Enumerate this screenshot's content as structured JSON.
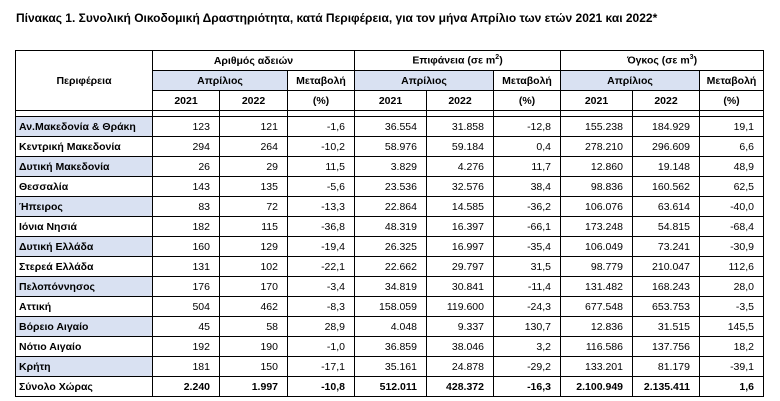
{
  "title": "Πίνακας 1. Συνολική Οικοδομική Δραστηριότητα, κατά  Περιφέρεια, για τον μήνα Απρίλιο των ετών 2021 και 2022*",
  "headers": {
    "region": "Περιφέρεια",
    "permits": "Αριθμός αδειών",
    "area": "Επιφάνεια (σε m",
    "area_sup": "2",
    "volume": "Όγκος (σε m",
    "volume_sup": "3",
    "close_paren": ")",
    "month": "Απρίλιος",
    "change": "Μεταβολή",
    "pct": "(%)",
    "year1": "2021",
    "year2": "2022"
  },
  "rows": [
    {
      "region": "Αν.Μακεδονία & Θράκη",
      "p21": "123",
      "p22": "121",
      "pc": "-1,6",
      "a21": "36.554",
      "a22": "31.858",
      "ac": "-12,8",
      "v21": "155.238",
      "v22": "184.929",
      "vc": "19,1"
    },
    {
      "region": "Κεντρική Μακεδονία",
      "p21": "294",
      "p22": "264",
      "pc": "-10,2",
      "a21": "58.976",
      "a22": "59.184",
      "ac": "0,4",
      "v21": "278.210",
      "v22": "296.609",
      "vc": "6,6"
    },
    {
      "region": "Δυτική Μακεδονία",
      "p21": "26",
      "p22": "29",
      "pc": "11,5",
      "a21": "3.829",
      "a22": "4.276",
      "ac": "11,7",
      "v21": "12.860",
      "v22": "19.148",
      "vc": "48,9"
    },
    {
      "region": "Θεσσαλία",
      "p21": "143",
      "p22": "135",
      "pc": "-5,6",
      "a21": "23.536",
      "a22": "32.576",
      "ac": "38,4",
      "v21": "98.836",
      "v22": "160.562",
      "vc": "62,5"
    },
    {
      "region": "Ήπειρος",
      "p21": "83",
      "p22": "72",
      "pc": "-13,3",
      "a21": "22.864",
      "a22": "14.585",
      "ac": "-36,2",
      "v21": "106.076",
      "v22": "63.614",
      "vc": "-40,0"
    },
    {
      "region": "Ιόνια Νησιά",
      "p21": "182",
      "p22": "115",
      "pc": "-36,8",
      "a21": "48.319",
      "a22": "16.397",
      "ac": "-66,1",
      "v21": "173.248",
      "v22": "54.815",
      "vc": "-68,4"
    },
    {
      "region": "Δυτική Ελλάδα",
      "p21": "160",
      "p22": "129",
      "pc": "-19,4",
      "a21": "26.325",
      "a22": "16.997",
      "ac": "-35,4",
      "v21": "106.049",
      "v22": "73.241",
      "vc": "-30,9"
    },
    {
      "region": "Στερεά Ελλάδα",
      "p21": "131",
      "p22": "102",
      "pc": "-22,1",
      "a21": "22.662",
      "a22": "29.797",
      "ac": "31,5",
      "v21": "98.779",
      "v22": "210.047",
      "vc": "112,6"
    },
    {
      "region": "Πελοπόννησος",
      "p21": "176",
      "p22": "170",
      "pc": "-3,4",
      "a21": "34.819",
      "a22": "30.841",
      "ac": "-11,4",
      "v21": "131.482",
      "v22": "168.243",
      "vc": "28,0"
    },
    {
      "region": "Αττική",
      "p21": "504",
      "p22": "462",
      "pc": "-8,3",
      "a21": "158.059",
      "a22": "119.600",
      "ac": "-24,3",
      "v21": "677.548",
      "v22": "653.753",
      "vc": "-3,5"
    },
    {
      "region": "Βόρειο Αιγαίο",
      "p21": "45",
      "p22": "58",
      "pc": "28,9",
      "a21": "4.048",
      "a22": "9.337",
      "ac": "130,7",
      "v21": "12.836",
      "v22": "31.515",
      "vc": "145,5"
    },
    {
      "region": "Νότιο Αιγαίο",
      "p21": "192",
      "p22": "190",
      "pc": "-1,0",
      "a21": "36.859",
      "a22": "38.046",
      "ac": "3,2",
      "v21": "116.586",
      "v22": "137.756",
      "vc": "18,2"
    },
    {
      "region": "Κρήτη",
      "p21": "181",
      "p22": "150",
      "pc": "-17,1",
      "a21": "35.161",
      "a22": "24.878",
      "ac": "-29,2",
      "v21": "133.201",
      "v22": "81.179",
      "vc": "-39,1"
    }
  ],
  "total": {
    "region": "Σύνολο Χώρας",
    "p21": "2.240",
    "p22": "1.997",
    "pc": "-10,8",
    "a21": "512.011",
    "a22": "428.372",
    "ac": "-16,3",
    "v21": "2.100.949",
    "v22": "2.135.411",
    "vc": "1,6"
  },
  "colors": {
    "header_shade": "#d9e1f2",
    "row_shade": "#d9e1f2"
  }
}
